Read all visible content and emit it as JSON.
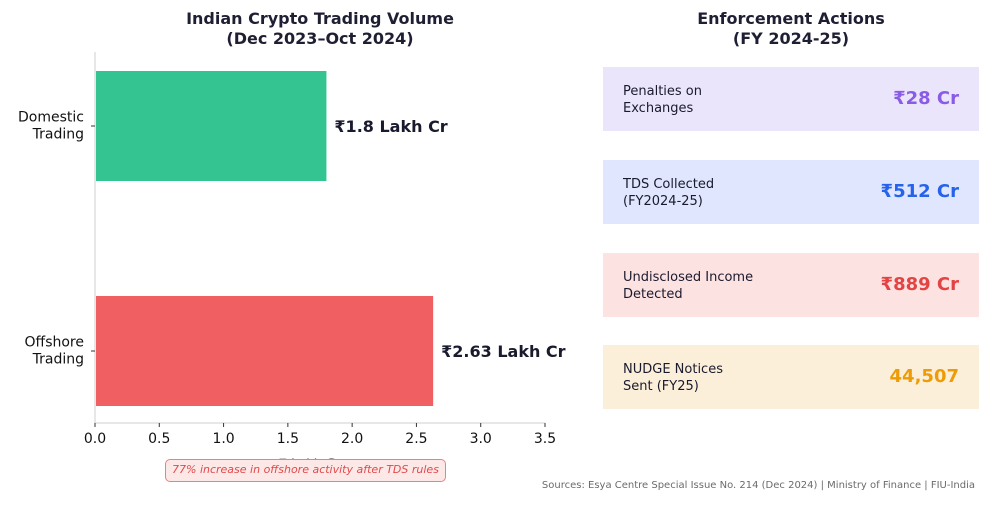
{
  "chart_data": {
    "type": "bar",
    "orientation": "horizontal",
    "title": "Indian Crypto Trading Volume\n(Dec 2023–Oct 2024)",
    "categories": [
      "Domestic\nTrading",
      "Offshore\nTrading"
    ],
    "values": [
      1.8,
      2.63
    ],
    "value_labels": [
      "₹1.8 Lakh Cr",
      "₹2.63 Lakh Cr"
    ],
    "colors": [
      "#34c492",
      "#f06062"
    ],
    "xlabel": "₹ Lakh Crore",
    "ylabel": "",
    "xlim": [
      0,
      3.5
    ],
    "xticks": [
      "0.0",
      "0.5",
      "1.0",
      "1.5",
      "2.0",
      "2.5",
      "3.0",
      "3.5"
    ],
    "grid": false
  },
  "enforcement": {
    "title": "Enforcement Actions\n(FY 2024-25)",
    "cards": [
      {
        "label": "Penalties on\nExchanges",
        "value": "₹28 Cr",
        "bg": "#ebe5fc",
        "color": "#8a5ce6"
      },
      {
        "label": "TDS Collected\n(FY2024-25)",
        "value": "₹512 Cr",
        "bg": "#dfe6fd",
        "color": "#2563eb"
      },
      {
        "label": "Undisclosed Income\nDetected",
        "value": "₹889 Cr",
        "bg": "#fde2e2",
        "color": "#e24444"
      },
      {
        "label": "NUDGE Notices\nSent (FY25)",
        "value": "44,507",
        "bg": "#fcefd9",
        "color": "#ee9b06"
      }
    ]
  },
  "annotation": "77% increase in offshore activity after TDS rules",
  "sources": "Sources: Esya Centre Special Issue No. 214 (Dec 2024) | Ministry of Finance | FIU-India"
}
